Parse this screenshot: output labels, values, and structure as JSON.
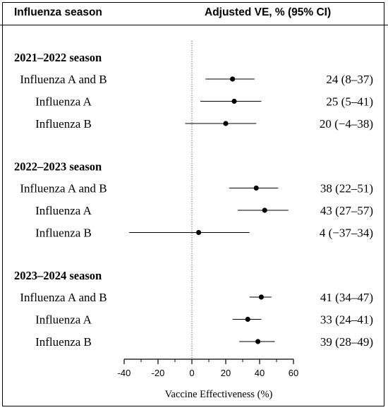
{
  "header": {
    "left": "Influenza season",
    "right": "Adjusted VE, % (95% CI)"
  },
  "chart_data": {
    "type": "forest",
    "xlabel": "Vaccine Effectiveness (%)",
    "xlim": [
      -40,
      60
    ],
    "xticks": [
      -40,
      -20,
      0,
      20,
      40,
      60
    ],
    "reference_line": 0,
    "groups": [
      {
        "title": "2021–2022 season",
        "rows": [
          {
            "label": "Influenza A and B",
            "estimate": 24,
            "lower": 8,
            "upper": 37,
            "text": "24 (8–37)"
          },
          {
            "label": "Influenza A",
            "estimate": 25,
            "lower": 5,
            "upper": 41,
            "text": "25 (5–41)"
          },
          {
            "label": "Influenza B",
            "estimate": 20,
            "lower": -4,
            "upper": 38,
            "text": "20 (−4–38)"
          }
        ]
      },
      {
        "title": "2022–2023 season",
        "rows": [
          {
            "label": "Influenza A and B",
            "estimate": 38,
            "lower": 22,
            "upper": 51,
            "text": "38 (22–51)"
          },
          {
            "label": "Influenza A",
            "estimate": 43,
            "lower": 27,
            "upper": 57,
            "text": "43 (27–57)"
          },
          {
            "label": "Influenza B",
            "estimate": 4,
            "lower": -37,
            "upper": 34,
            "text": "4 (−37–34)"
          }
        ]
      },
      {
        "title": "2023–2024 season",
        "rows": [
          {
            "label": "Influenza A and B",
            "estimate": 41,
            "lower": 34,
            "upper": 47,
            "text": "41 (34–47)"
          },
          {
            "label": "Influenza A",
            "estimate": 33,
            "lower": 24,
            "upper": 41,
            "text": "33 (24–41)"
          },
          {
            "label": "Influenza B",
            "estimate": 39,
            "lower": 28,
            "upper": 49,
            "text": "39 (28–49)"
          }
        ]
      }
    ]
  }
}
